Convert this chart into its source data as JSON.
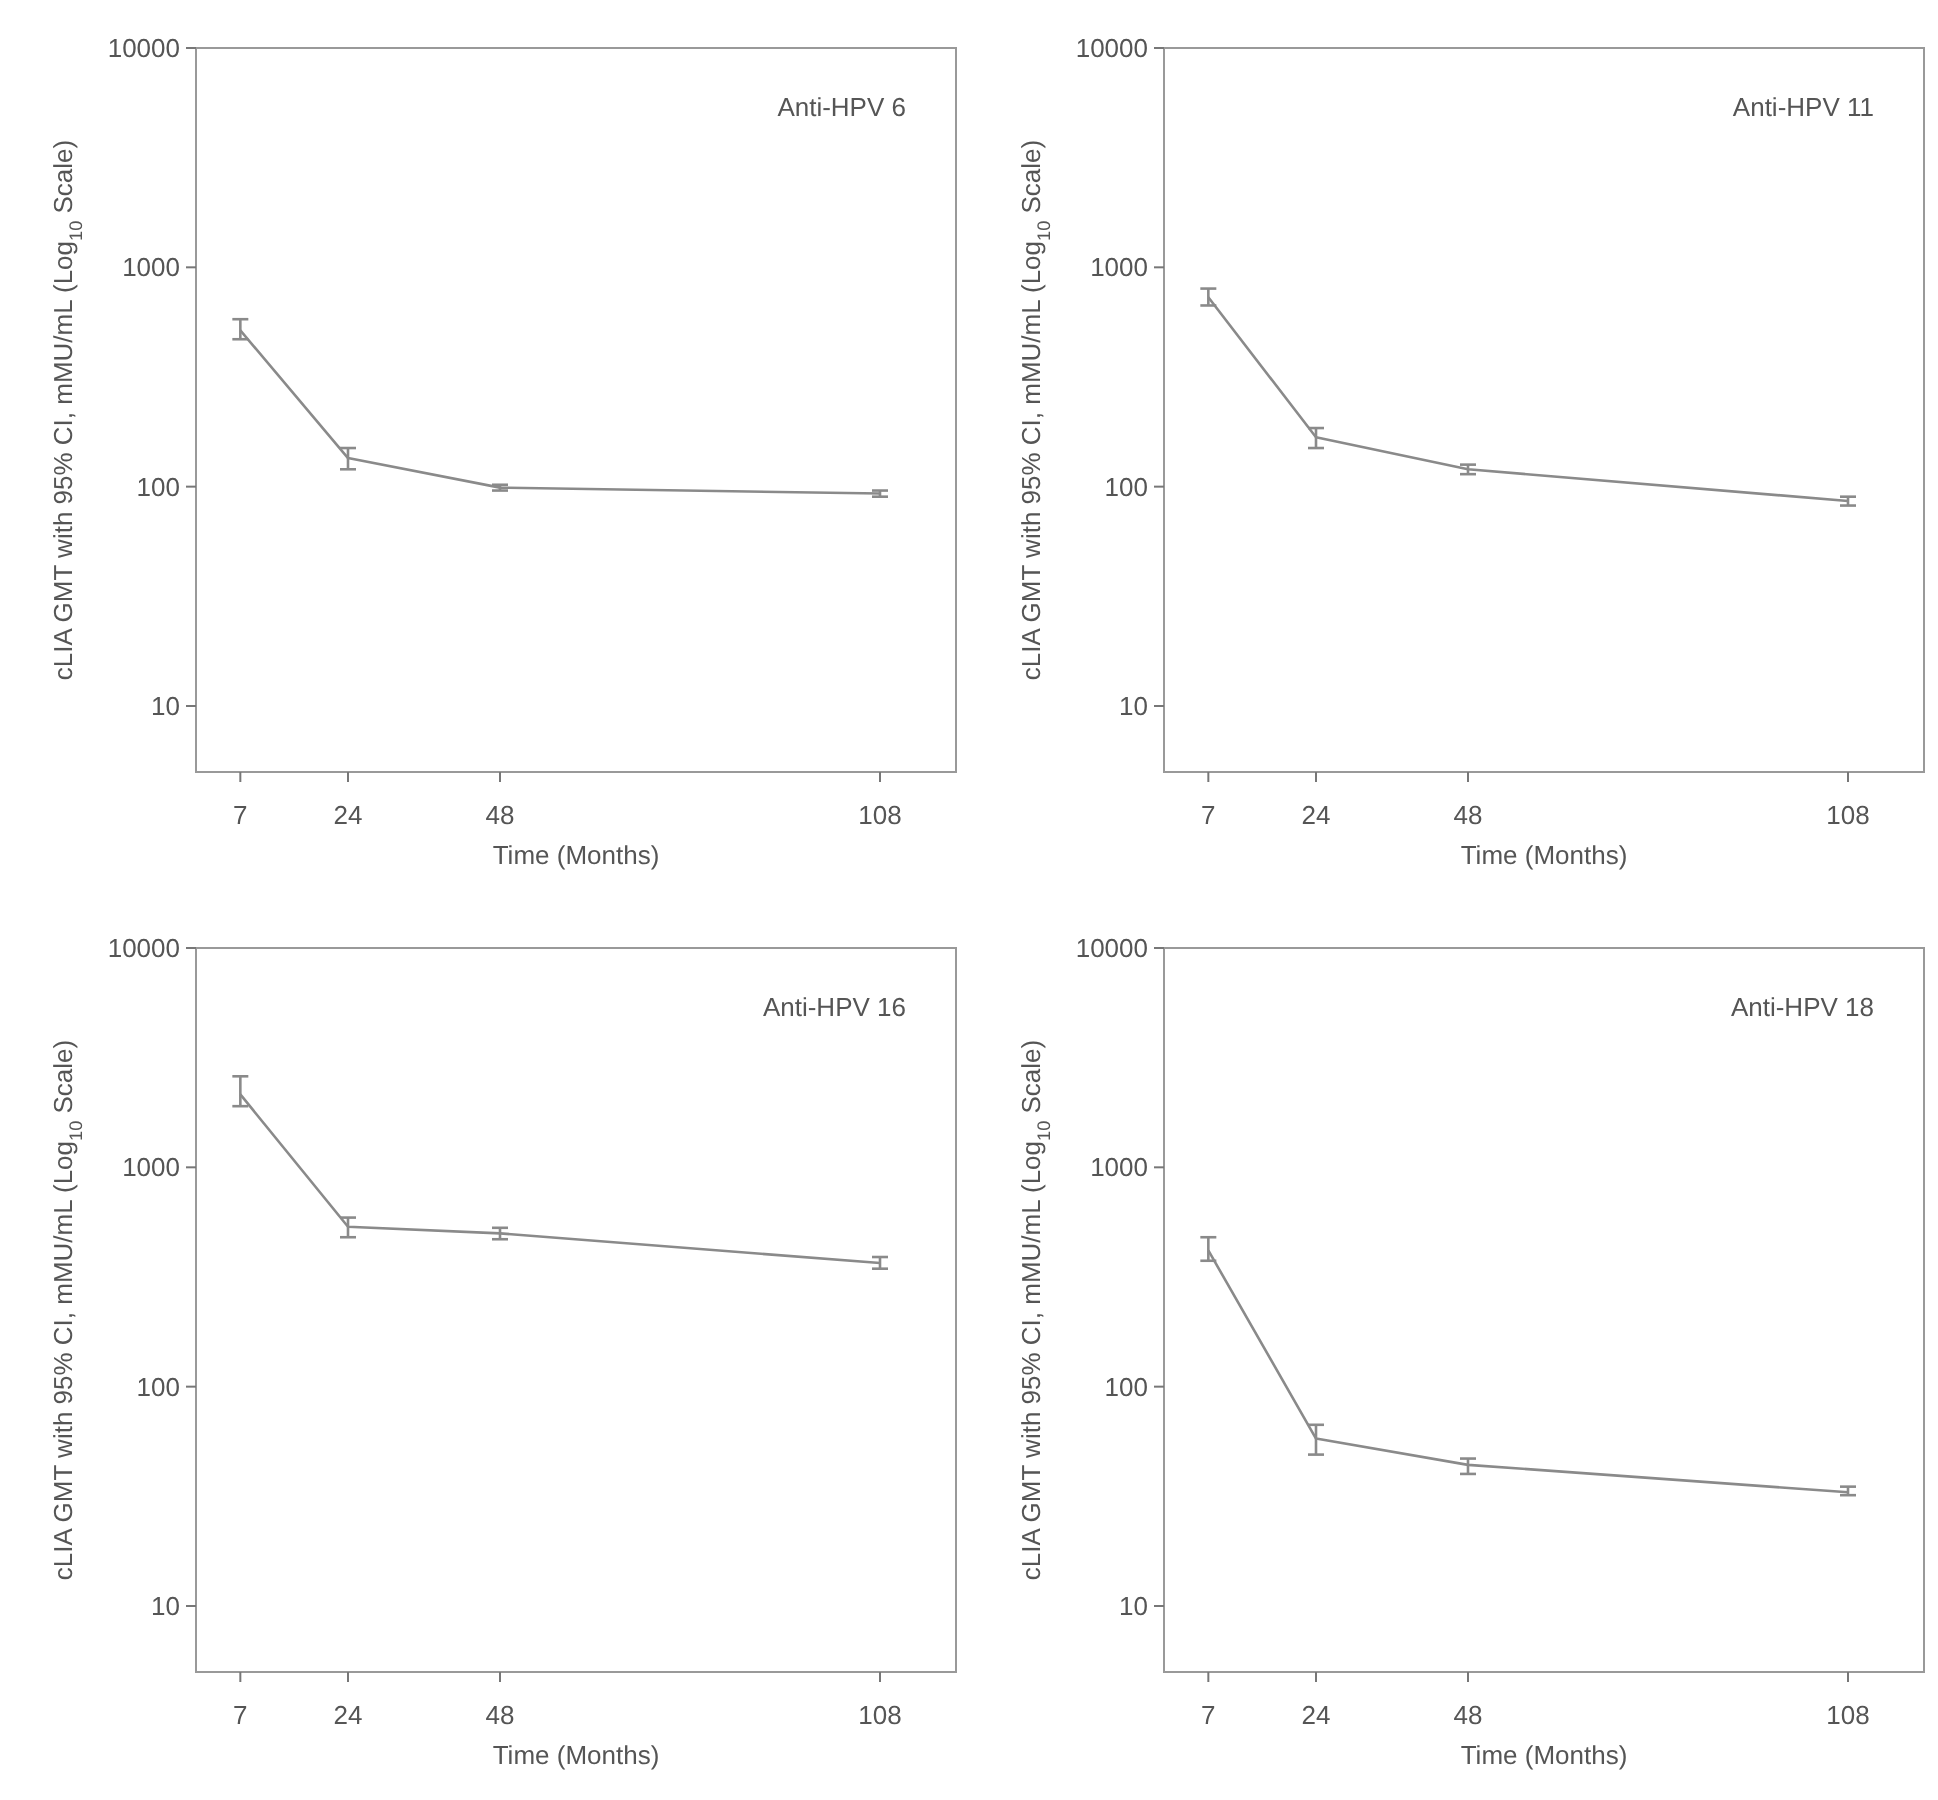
{
  "chart_data": [
    {
      "type": "line",
      "title": "Anti-HPV 6",
      "xlabel": "Time (Months)",
      "ylabel": "cLIA GMT with 95% CI, mMU/mL (Log$_{10}$ Scale)",
      "log": "y",
      "xlim": [
        0,
        120
      ],
      "xticks": [
        7,
        24,
        48,
        108
      ],
      "ylim": [
        5,
        10000
      ],
      "yticks": [
        10,
        100,
        1000,
        10000
      ],
      "x": [
        7,
        24,
        48,
        108
      ],
      "series": [
        {
          "color": "#8a8a8a",
          "values": [
            516,
            135,
            99,
            93
          ],
          "errors": [
            [
              470,
              580
            ],
            [
              120,
              150
            ],
            [
              96,
              102
            ],
            [
              90,
              96
            ]
          ]
        }
      ]
    },
    {
      "type": "line",
      "title": "Anti-HPV 11",
      "xlabel": "Time (Months)",
      "ylabel": "cLIA GMT with 95% CI, mMU/mL (Log$_{10}$ Scale)",
      "log": "y",
      "xlim": [
        0,
        120
      ],
      "xticks": [
        7,
        24,
        48,
        108
      ],
      "ylim": [
        5,
        10000
      ],
      "yticks": [
        10,
        100,
        1000,
        10000
      ],
      "x": [
        7,
        24,
        48,
        108
      ],
      "series": [
        {
          "color": "#8a8a8a",
          "values": [
            730,
            168,
            120,
            86
          ],
          "errors": [
            [
              670,
              800
            ],
            [
              150,
              185
            ],
            [
              114,
              126
            ],
            [
              82,
              90
            ]
          ]
        }
      ]
    },
    {
      "type": "line",
      "title": "Anti-HPV 16",
      "xlabel": "Time (Months)",
      "ylabel": "cLIA GMT with 95% CI, mMU/mL (Log$_{10}$ Scale)",
      "log": "y",
      "xlim": [
        0,
        120
      ],
      "xticks": [
        7,
        24,
        48,
        108
      ],
      "ylim": [
        5,
        10000
      ],
      "yticks": [
        10,
        100,
        1000,
        10000
      ],
      "x": [
        7,
        24,
        48,
        108
      ],
      "series": [
        {
          "color": "#8a8a8a",
          "values": [
            2150,
            536,
            500,
            366
          ],
          "errors": [
            [
              1900,
              2600
            ],
            [
              480,
              590
            ],
            [
              470,
              530
            ],
            [
              345,
              390
            ]
          ]
        }
      ]
    },
    {
      "type": "line",
      "title": "Anti-HPV 18",
      "xlabel": "Time (Months)",
      "ylabel": "cLIA GMT with 95% CI, mMU/mL (Log$_{10}$ Scale)",
      "log": "y",
      "xlim": [
        0,
        120
      ],
      "xticks": [
        7,
        24,
        48,
        108
      ],
      "ylim": [
        5,
        10000
      ],
      "yticks": [
        10,
        100,
        1000,
        10000
      ],
      "x": [
        7,
        24,
        48,
        108
      ],
      "series": [
        {
          "color": "#8a8a8a",
          "values": [
            418,
            58,
            44,
            33
          ],
          "errors": [
            [
              375,
              480
            ],
            [
              49,
              67
            ],
            [
              40,
              47
            ],
            [
              32,
              35
            ]
          ]
        }
      ]
    }
  ]
}
